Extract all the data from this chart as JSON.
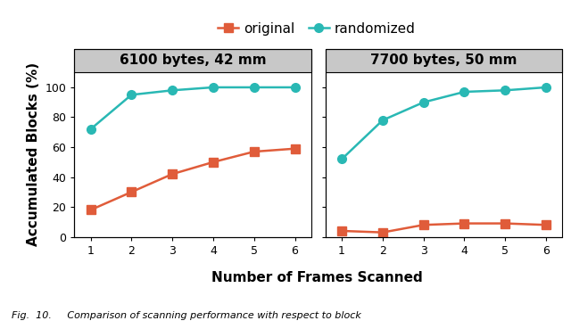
{
  "panel1_title": "6100 bytes, 42 mm",
  "panel2_title": "7700 bytes, 50 mm",
  "x": [
    1,
    2,
    3,
    4,
    5,
    6
  ],
  "panel1_original": [
    18,
    30,
    42,
    50,
    57,
    59
  ],
  "panel1_randomized": [
    72,
    95,
    98,
    100,
    100,
    100
  ],
  "panel2_original": [
    4,
    3,
    8,
    9,
    9,
    8
  ],
  "panel2_randomized": [
    52,
    78,
    90,
    97,
    98,
    100
  ],
  "original_color": "#E05C3A",
  "randomized_color": "#29B8B4",
  "ylabel": "Accumulated Blocks (%)",
  "xlabel": "Number of Frames Scanned",
  "legend_original": "original",
  "legend_randomized": "randomized",
  "ylim": [
    0,
    110
  ],
  "yticks": [
    0,
    20,
    40,
    60,
    80,
    100
  ],
  "panel_bg": "#C8C8C8",
  "plot_bg": "#FFFFFF",
  "title_fontsize": 11,
  "label_fontsize": 11,
  "tick_fontsize": 9,
  "legend_fontsize": 11,
  "linewidth": 1.8,
  "markersize": 7,
  "caption_text": "Fig.  10.     Comparison of scanning performance with respect to block"
}
